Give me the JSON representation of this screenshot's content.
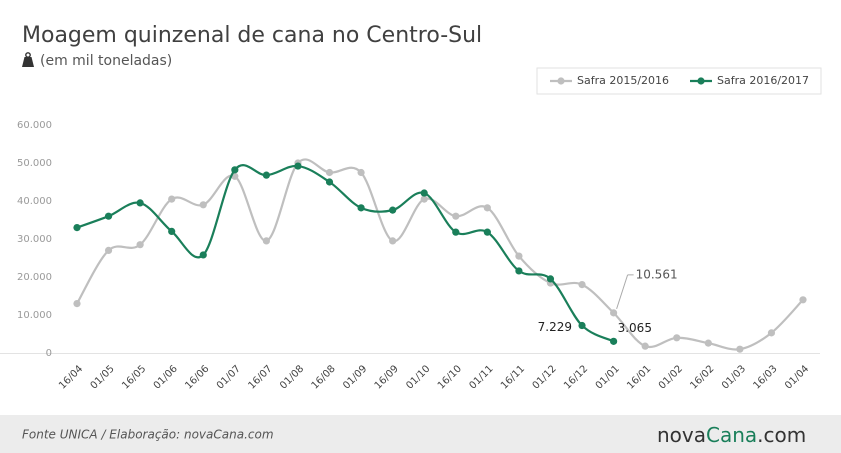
{
  "chart_data": {
    "type": "line",
    "title": "Moagem quinzenal de cana no Centro-Sul",
    "subtitle": "(em mil toneladas)",
    "source": "Fonte UNICA / Elaboração: novaCana.com",
    "logo": [
      "nova",
      "Cana",
      ".com"
    ],
    "categories": [
      "16/04",
      "01/05",
      "16/05",
      "01/06",
      "16/06",
      "01/07",
      "16/07",
      "01/08",
      "16/08",
      "01/09",
      "16/09",
      "01/10",
      "16/10",
      "01/11",
      "16/11",
      "01/12",
      "16/12",
      "01/01",
      "16/01",
      "01/02",
      "16/02",
      "01/03",
      "16/03",
      "01/04"
    ],
    "series": [
      {
        "name": "Safra 2015/2016",
        "color": "#bfbfbf",
        "values": [
          13000,
          27000,
          28500,
          40500,
          39000,
          46500,
          29500,
          50000,
          47500,
          47500,
          29500,
          40500,
          36000,
          38200,
          25500,
          18400,
          18000,
          10561,
          1800,
          4000,
          2600,
          1000,
          5300,
          14000
        ],
        "value_labels": [
          null,
          null,
          null,
          null,
          null,
          null,
          null,
          null,
          null,
          null,
          null,
          null,
          null,
          null,
          null,
          null,
          null,
          "10.561",
          null,
          null,
          null,
          null,
          null,
          null
        ]
      },
      {
        "name": "Safra 2016/2017",
        "color": "#1a7f5a",
        "values": [
          33000,
          36000,
          39500,
          32000,
          25800,
          48200,
          46800,
          49200,
          45000,
          38200,
          37600,
          42100,
          31800,
          31800,
          21600,
          19500,
          7229,
          3065,
          null,
          null,
          null,
          null,
          null,
          null
        ],
        "value_labels": [
          null,
          null,
          null,
          null,
          null,
          null,
          null,
          null,
          null,
          null,
          null,
          null,
          null,
          null,
          null,
          null,
          "7.229",
          "3.065",
          null,
          null,
          null,
          null,
          null,
          null
        ]
      }
    ],
    "ylim": [
      0,
      60000
    ],
    "yticks": [
      0,
      {
        "value": 10000,
        "label": "10.000"
      },
      {
        "value": 20000,
        "label": "20.000"
      },
      {
        "value": 30000,
        "label": "30.000"
      },
      {
        "value": 40000,
        "label": "40.000"
      },
      {
        "value": 50000,
        "label": "50.000"
      },
      {
        "value": 60000,
        "label": "60.000"
      }
    ],
    "grid": false,
    "legend": "top-right"
  }
}
